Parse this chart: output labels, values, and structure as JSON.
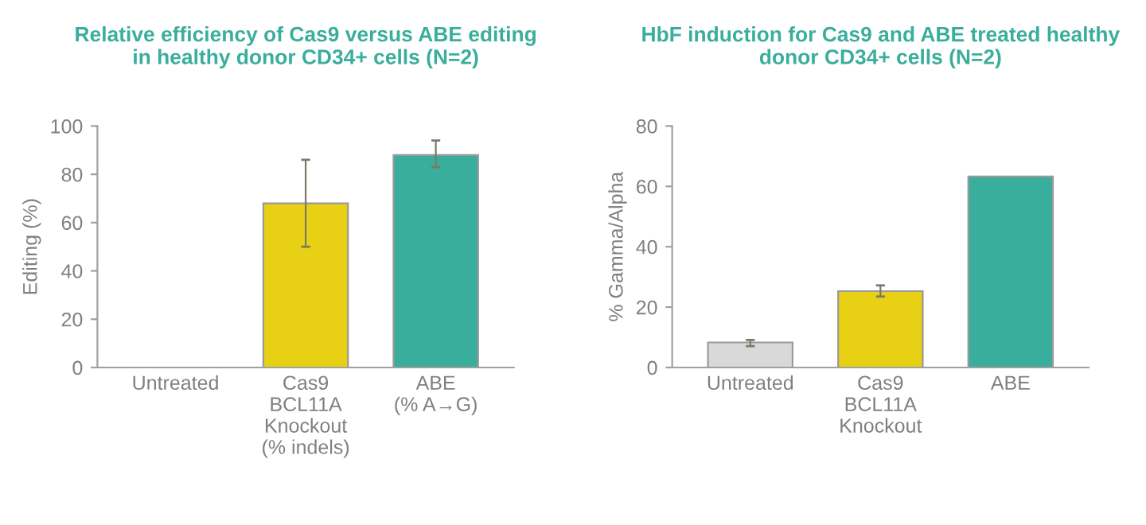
{
  "chart_data": [
    {
      "type": "bar",
      "title": "Relative efficiency of Cas9 versus ABE editing\nin healthy donor CD34+ cells (N=2)",
      "ylabel": "Editing (%)",
      "categories": [
        "Untreated",
        "Cas9\nBCL11A\nKnockout\n(% indels)",
        "ABE\n(% A→G)"
      ],
      "values": [
        0,
        68,
        88
      ],
      "colors": [
        "#d9d9d9",
        "#e8d014",
        "#3aae9c"
      ],
      "errors": [
        null,
        [
          50,
          86
        ],
        [
          83,
          94
        ]
      ],
      "ylim": [
        0,
        100
      ],
      "yticks": [
        0,
        20,
        40,
        60,
        80,
        100
      ],
      "grid": false,
      "legend": false
    },
    {
      "type": "bar",
      "title": "HbF induction for Cas9 and ABE treated healthy\ndonor CD34+ cells (N=2)",
      "ylabel": "% Gamma/Alpha",
      "categories": [
        "Untreated",
        "Cas9\nBCL11A\nKnockout",
        "ABE"
      ],
      "values": [
        8.3,
        25.3,
        63.3
      ],
      "colors": [
        "#d9d9d9",
        "#e8d014",
        "#3aae9c"
      ],
      "errors": [
        [
          7.1,
          9.1
        ],
        [
          23.5,
          27.2
        ],
        null
      ],
      "ylim": [
        0,
        80
      ],
      "yticks": [
        0,
        20,
        40,
        60,
        80
      ],
      "grid": false,
      "legend": false
    }
  ]
}
